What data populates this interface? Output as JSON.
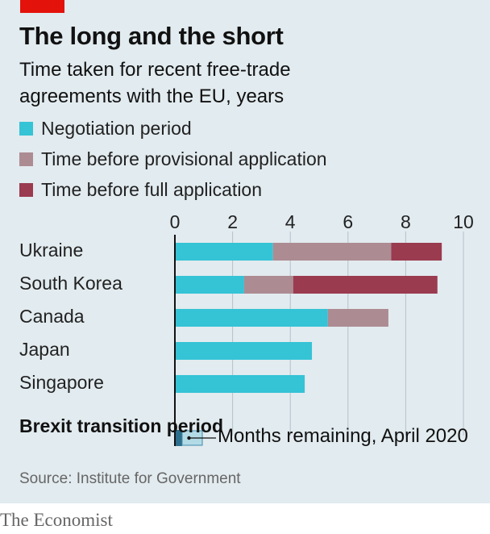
{
  "header": {
    "title": "The long and the short",
    "subtitle": "Time taken for recent free-trade agreements with the EU, years"
  },
  "legend": [
    {
      "label": "Negotiation period",
      "color": "#35c3d6"
    },
    {
      "label": "Time before provisional application",
      "color": "#ad8b93"
    },
    {
      "label": "Time before full application",
      "color": "#9a3b50"
    }
  ],
  "chart_data": {
    "type": "bar",
    "orientation": "horizontal",
    "stacked": true,
    "categories": [
      "Ukraine",
      "South Korea",
      "Canada",
      "Japan",
      "Singapore"
    ],
    "series": [
      {
        "name": "Negotiation period",
        "values": [
          3.4,
          2.4,
          5.3,
          4.75,
          4.5
        ]
      },
      {
        "name": "Time before provisional application",
        "values": [
          4.1,
          1.7,
          2.1,
          0,
          0
        ]
      },
      {
        "name": "Time before full application",
        "values": [
          1.75,
          5.0,
          0,
          0,
          0
        ]
      }
    ],
    "xlim": [
      0,
      10
    ],
    "xticks": [
      0,
      2,
      4,
      6,
      8,
      10
    ],
    "grid": true,
    "reference": {
      "label": "Brexit transition period",
      "elapsed": 0.25,
      "remaining": 0.7,
      "annotation": "Months remaining, April 2020"
    }
  },
  "source": "Source: Institute for Government",
  "brand": "The Economist"
}
